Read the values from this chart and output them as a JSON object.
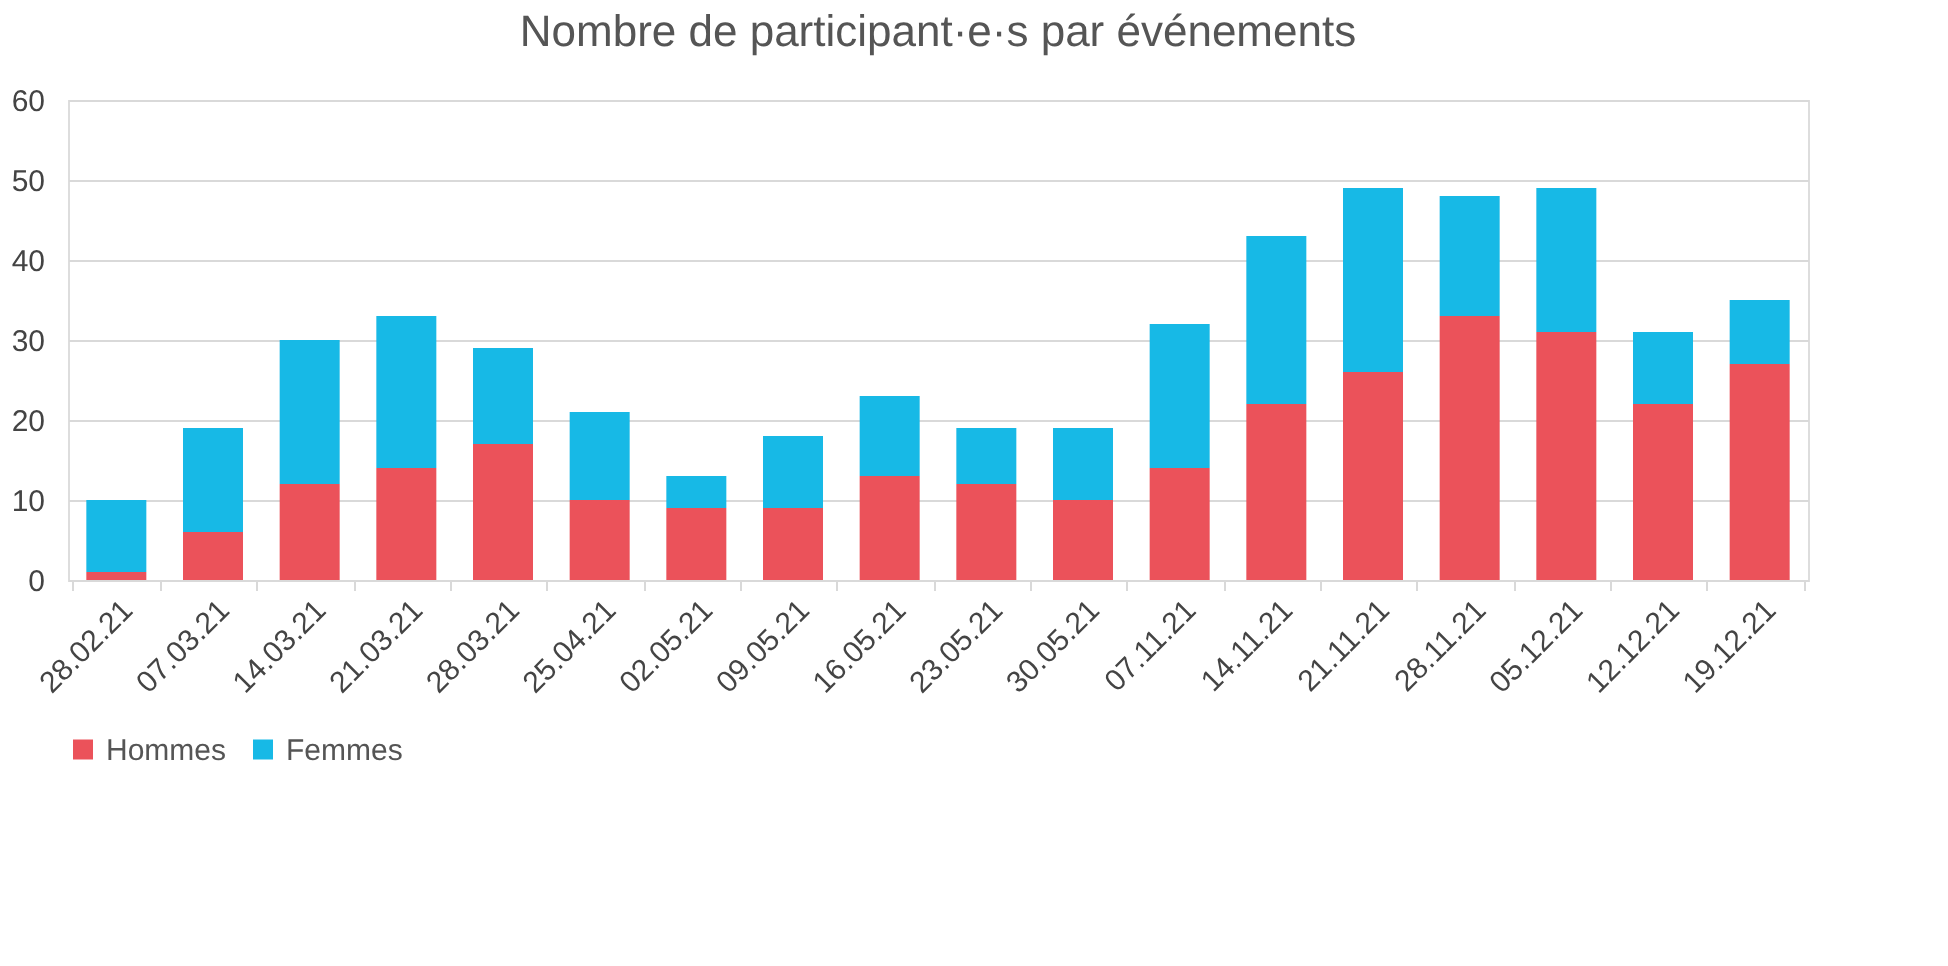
{
  "chart_data": {
    "type": "bar",
    "title": "Nombre de participant·e·s par événements",
    "stacked": true,
    "categories": [
      "28.02.21",
      "07.03.21",
      "14.03.21",
      "21.03.21",
      "28.03.21",
      "25.04.21",
      "02.05.21",
      "09.05.21",
      "16.05.21",
      "23.05.21",
      "30.05.21",
      "07.11.21",
      "14.11.21",
      "21.11.21",
      "28.11.21",
      "05.12.21",
      "12.12.21",
      "19.12.21"
    ],
    "series": [
      {
        "name": "Hommes",
        "color": "#eb525a",
        "values": [
          1,
          6,
          12,
          14,
          17,
          10,
          9,
          9,
          13,
          12,
          10,
          14,
          22,
          26,
          33,
          31,
          22,
          27
        ]
      },
      {
        "name": "Femmes",
        "color": "#17b9e6",
        "values": [
          9,
          13,
          18,
          19,
          12,
          11,
          4,
          9,
          10,
          7,
          9,
          18,
          21,
          23,
          15,
          18,
          9,
          8
        ]
      }
    ],
    "ylim": [
      0,
      60
    ],
    "yticks": [
      0,
      10,
      20,
      30,
      40,
      50,
      60
    ],
    "grid": "y",
    "legend": "bottom"
  }
}
